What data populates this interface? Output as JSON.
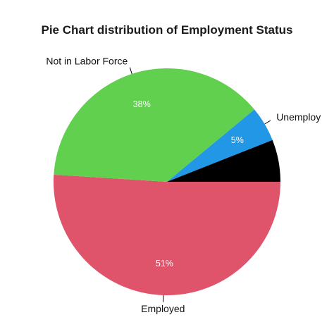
{
  "chart_data": {
    "type": "pie",
    "title": "Pie Chart distribution of Employment Status",
    "slices": [
      {
        "name": "Employed",
        "value": 51,
        "color": "#DF536B",
        "value_label": "51%",
        "category_label": "Employed"
      },
      {
        "name": "Not in Labor Force",
        "value": 38,
        "color": "#61D04F",
        "value_label": "38%",
        "category_label": "Not in Labor Force"
      },
      {
        "name": "Unemployed",
        "value": 5,
        "color": "#2297E6",
        "value_label": "5%",
        "category_label": "Unemploy"
      },
      {
        "name": "",
        "value": 6,
        "color": "#000000",
        "value_label": "",
        "category_label": ""
      }
    ],
    "start_angle_deg": 0,
    "direction": "clockwise",
    "legend": "none"
  }
}
